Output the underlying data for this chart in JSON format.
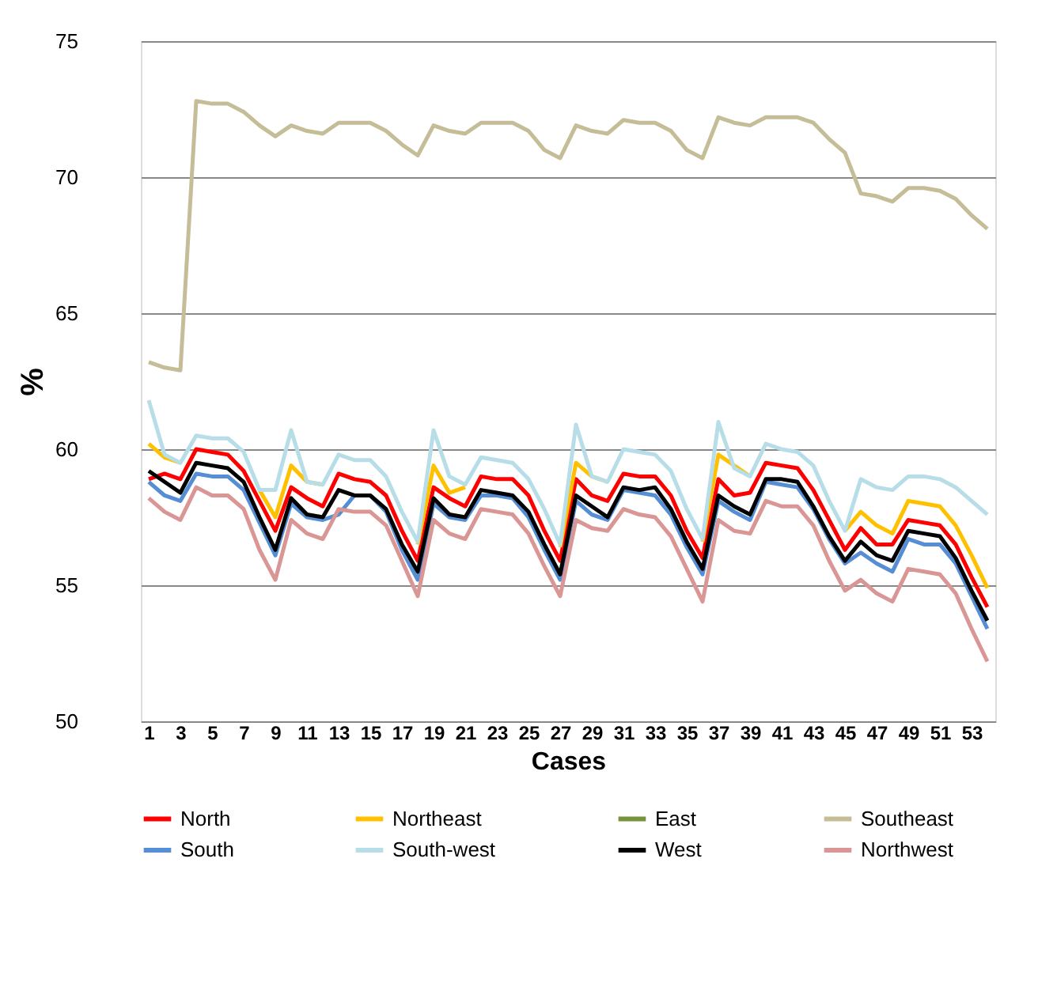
{
  "chart_data": {
    "type": "line",
    "xlabel": "Cases",
    "ylabel": "%",
    "x": [
      1,
      2,
      3,
      4,
      5,
      6,
      7,
      8,
      9,
      10,
      11,
      12,
      13,
      14,
      15,
      16,
      17,
      18,
      19,
      20,
      21,
      22,
      23,
      24,
      25,
      26,
      27,
      28,
      29,
      30,
      31,
      32,
      33,
      34,
      35,
      36,
      37,
      38,
      39,
      40,
      41,
      42,
      43,
      44,
      45,
      46,
      47,
      48,
      49,
      50,
      51,
      52,
      53,
      54
    ],
    "xlim": [
      0.5,
      54.5
    ],
    "xticks": [
      1,
      3,
      5,
      7,
      9,
      11,
      13,
      15,
      17,
      19,
      21,
      23,
      25,
      27,
      29,
      31,
      33,
      35,
      37,
      39,
      41,
      43,
      45,
      47,
      49,
      51,
      53
    ],
    "ylim": [
      50,
      75
    ],
    "yticks": [
      50,
      55,
      60,
      65,
      70,
      75
    ],
    "grid": "y",
    "legend": "bottom",
    "marker": "none",
    "line_style": "solid",
    "series": [
      {
        "name": "North",
        "color": "#ff0000",
        "values": [
          58.9,
          59.1,
          58.9,
          60.0,
          59.9,
          59.8,
          59.2,
          58.1,
          57.0,
          58.6,
          58.2,
          57.9,
          59.1,
          58.9,
          58.8,
          58.3,
          57.0,
          55.9,
          58.6,
          58.2,
          57.9,
          59.0,
          58.9,
          58.9,
          58.3,
          57.0,
          55.9,
          58.9,
          58.3,
          58.1,
          59.1,
          59.0,
          59.0,
          58.3,
          57.0,
          56.0,
          58.9,
          58.3,
          58.4,
          59.5,
          59.4,
          59.3,
          58.5,
          57.4,
          56.3,
          57.1,
          56.5,
          56.5,
          57.4,
          57.3,
          57.2,
          56.5,
          55.3,
          54.2
        ]
      },
      {
        "name": "Northeast",
        "color": "#ffc000",
        "values": [
          60.2,
          59.7,
          59.5,
          null,
          null,
          null,
          null,
          58.5,
          57.5,
          59.4,
          58.8,
          58.7,
          null,
          null,
          null,
          null,
          null,
          56.5,
          59.4,
          58.4,
          58.6,
          null,
          null,
          null,
          null,
          null,
          56.4,
          59.5,
          59.0,
          58.8,
          null,
          null,
          null,
          null,
          null,
          56.6,
          59.8,
          59.4,
          59.0,
          null,
          null,
          null,
          null,
          null,
          57.0,
          57.7,
          57.2,
          56.9,
          58.1,
          58.0,
          57.9,
          57.2,
          56.1,
          54.9
        ]
      },
      {
        "name": "East",
        "color": "#77933c",
        "values": [
          null,
          null,
          null,
          null,
          null,
          null,
          null,
          null,
          null,
          null,
          null,
          null,
          null,
          null,
          null,
          null,
          null,
          null,
          null,
          null,
          null,
          null,
          null,
          null,
          null,
          null,
          null,
          null,
          null,
          null,
          null,
          null,
          null,
          null,
          null,
          null,
          null,
          null,
          null,
          null,
          null,
          null,
          null,
          null,
          null,
          null,
          null,
          null,
          null,
          null,
          null,
          null,
          null,
          null
        ]
      },
      {
        "name": "Southeast",
        "color": "#c4bd97",
        "values": [
          63.2,
          63.0,
          62.9,
          72.8,
          72.7,
          72.7,
          72.4,
          71.9,
          71.5,
          71.9,
          71.7,
          71.6,
          72.0,
          72.0,
          72.0,
          71.7,
          71.2,
          70.8,
          71.9,
          71.7,
          71.6,
          72.0,
          72.0,
          72.0,
          71.7,
          71.0,
          70.7,
          71.9,
          71.7,
          71.6,
          72.1,
          72.0,
          72.0,
          71.7,
          71.0,
          70.7,
          72.2,
          72.0,
          71.9,
          72.2,
          72.2,
          72.2,
          72.0,
          71.4,
          70.9,
          69.4,
          69.3,
          69.1,
          69.6,
          69.6,
          69.5,
          69.2,
          68.6,
          68.1
        ]
      },
      {
        "name": "South",
        "color": "#558ed5",
        "values": [
          58.8,
          58.3,
          58.1,
          59.1,
          59.0,
          59.0,
          58.5,
          57.3,
          56.1,
          58.0,
          57.5,
          57.4,
          57.6,
          58.3,
          58.3,
          57.7,
          56.3,
          55.2,
          58.0,
          57.5,
          57.4,
          58.3,
          58.3,
          58.2,
          57.5,
          56.3,
          55.2,
          58.1,
          57.6,
          57.4,
          58.5,
          58.4,
          58.3,
          57.6,
          56.4,
          55.4,
          58.1,
          57.7,
          57.4,
          58.8,
          58.7,
          58.6,
          57.8,
          56.7,
          55.8,
          56.2,
          55.8,
          55.5,
          56.7,
          56.5,
          56.5,
          55.8,
          54.6,
          53.4
        ]
      },
      {
        "name": "South-west",
        "color": "#b7dee8",
        "values": [
          61.8,
          59.8,
          59.5,
          60.5,
          60.4,
          60.4,
          59.9,
          58.5,
          58.5,
          60.7,
          58.8,
          58.7,
          59.8,
          59.6,
          59.6,
          59.0,
          57.7,
          56.6,
          60.7,
          59.0,
          58.7,
          59.7,
          59.6,
          59.5,
          58.9,
          57.8,
          56.5,
          60.9,
          59.0,
          58.8,
          60.0,
          59.9,
          59.8,
          59.2,
          57.8,
          56.7,
          61.0,
          59.3,
          59.0,
          60.2,
          60.0,
          59.9,
          59.4,
          58.1,
          57.0,
          58.9,
          58.6,
          58.5,
          59.0,
          59.0,
          58.9,
          58.6,
          58.1,
          57.6
        ]
      },
      {
        "name": "West",
        "color": "#000000",
        "values": [
          59.2,
          58.8,
          58.4,
          59.5,
          59.4,
          59.3,
          58.8,
          57.5,
          56.3,
          58.2,
          57.6,
          57.5,
          58.5,
          58.3,
          58.3,
          57.8,
          56.5,
          55.5,
          58.2,
          57.6,
          57.5,
          58.5,
          58.4,
          58.3,
          57.7,
          56.5,
          55.4,
          58.3,
          57.9,
          57.5,
          58.6,
          58.5,
          58.6,
          57.8,
          56.6,
          55.6,
          58.3,
          57.9,
          57.6,
          58.9,
          58.9,
          58.8,
          57.9,
          56.8,
          55.9,
          56.6,
          56.1,
          55.9,
          57.0,
          56.9,
          56.8,
          56.0,
          54.8,
          53.7
        ]
      },
      {
        "name": "Northwest",
        "color": "#d99694",
        "values": [
          58.2,
          57.7,
          57.4,
          58.6,
          58.3,
          58.3,
          57.8,
          56.3,
          55.2,
          57.4,
          56.9,
          56.7,
          57.8,
          57.7,
          57.7,
          57.2,
          55.9,
          54.6,
          57.4,
          56.9,
          56.7,
          57.8,
          57.7,
          57.6,
          56.9,
          55.7,
          54.6,
          57.4,
          57.1,
          57.0,
          57.8,
          57.6,
          57.5,
          56.8,
          55.6,
          54.4,
          57.4,
          57.0,
          56.9,
          58.1,
          57.9,
          57.9,
          57.2,
          55.9,
          54.8,
          55.2,
          54.7,
          54.4,
          55.6,
          55.5,
          55.4,
          54.7,
          53.4,
          52.2
        ]
      }
    ]
  }
}
